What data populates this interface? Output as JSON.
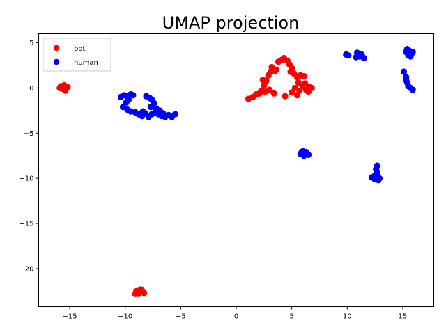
{
  "chart_data": {
    "type": "scatter",
    "title": "UMAP projection",
    "xlabel": "",
    "ylabel": "",
    "xlim": [
      -17.8,
      17.8
    ],
    "ylim": [
      -24.2,
      6.0
    ],
    "xticks": [
      -15,
      -10,
      -5,
      0,
      5,
      10,
      15
    ],
    "yticks": [
      5,
      0,
      -5,
      -10,
      -15,
      -20
    ],
    "grid": false,
    "legend_position": "top-left",
    "series": [
      {
        "name": "bot",
        "color": "#ff0000",
        "points": [
          [
            -15.8,
            0.2
          ],
          [
            -15.6,
            -0.1
          ],
          [
            -15.3,
            0.0
          ],
          [
            -15.9,
            0.0
          ],
          [
            -15.5,
            0.3
          ],
          [
            -15.4,
            -0.3
          ],
          [
            -15.7,
            0.1
          ],
          [
            -15.2,
            0.1
          ],
          [
            -9.0,
            -22.5
          ],
          [
            -8.8,
            -22.8
          ],
          [
            -8.5,
            -22.4
          ],
          [
            -8.3,
            -22.7
          ],
          [
            -8.7,
            -22.6
          ],
          [
            -9.1,
            -22.8
          ],
          [
            -8.6,
            -22.3
          ],
          [
            1.1,
            -1.2
          ],
          [
            1.5,
            -1.0
          ],
          [
            1.8,
            -0.7
          ],
          [
            2.1,
            -0.6
          ],
          [
            2.3,
            -0.3
          ],
          [
            2.6,
            -0.4
          ],
          [
            2.5,
            0.3
          ],
          [
            2.7,
            0.8
          ],
          [
            2.4,
            0.9
          ],
          [
            2.9,
            1.4
          ],
          [
            3.1,
            1.8
          ],
          [
            3.2,
            2.3
          ],
          [
            3.5,
            1.9
          ],
          [
            3.8,
            2.9
          ],
          [
            4.1,
            3.1
          ],
          [
            4.3,
            3.3
          ],
          [
            4.6,
            3.0
          ],
          [
            4.8,
            2.6
          ],
          [
            5.0,
            2.2
          ],
          [
            5.2,
            1.6
          ],
          [
            5.5,
            1.2
          ],
          [
            5.8,
            1.4
          ],
          [
            6.1,
            1.3
          ],
          [
            5.6,
            0.6
          ],
          [
            6.0,
            0.2
          ],
          [
            5.3,
            0.0
          ],
          [
            5.7,
            -0.3
          ],
          [
            6.3,
            -0.2
          ],
          [
            6.6,
            0.1
          ],
          [
            6.8,
            0.0
          ],
          [
            6.5,
            -0.4
          ],
          [
            5.5,
            -0.8
          ],
          [
            4.4,
            -0.9
          ],
          [
            5.0,
            -0.5
          ],
          [
            3.4,
            -0.6
          ],
          [
            3.0,
            -0.2
          ],
          [
            3.6,
            2.0
          ],
          [
            4.9,
            1.8
          ],
          [
            6.2,
            0.5
          ]
        ]
      },
      {
        "name": "human",
        "color": "#0000ff",
        "points": [
          [
            -10.4,
            -1.0
          ],
          [
            -10.1,
            -0.8
          ],
          [
            -9.8,
            -0.9
          ],
          [
            -9.5,
            -0.7
          ],
          [
            -9.3,
            -0.8
          ],
          [
            -9.7,
            -1.3
          ],
          [
            -9.9,
            -1.6
          ],
          [
            -10.2,
            -2.1
          ],
          [
            -9.8,
            -2.4
          ],
          [
            -9.5,
            -2.6
          ],
          [
            -9.1,
            -2.7
          ],
          [
            -8.8,
            -2.9
          ],
          [
            -8.5,
            -3.1
          ],
          [
            -8.2,
            -2.8
          ],
          [
            -8.4,
            -2.6
          ],
          [
            -7.9,
            -3.2
          ],
          [
            -7.6,
            -2.9
          ],
          [
            -7.3,
            -2.7
          ],
          [
            -7.0,
            -2.9
          ],
          [
            -6.7,
            -3.1
          ],
          [
            -6.4,
            -3.2
          ],
          [
            -6.1,
            -3.0
          ],
          [
            -5.8,
            -3.2
          ],
          [
            -5.5,
            -2.9
          ],
          [
            -8.1,
            -0.9
          ],
          [
            -7.8,
            -1.1
          ],
          [
            -7.6,
            -1.3
          ],
          [
            -7.4,
            -1.7
          ],
          [
            -7.7,
            -2.1
          ],
          [
            -7.2,
            -2.3
          ],
          [
            -6.9,
            -2.5
          ],
          [
            -6.6,
            -2.8
          ],
          [
            6.0,
            -7.0
          ],
          [
            6.3,
            -7.1
          ],
          [
            5.8,
            -7.3
          ],
          [
            6.5,
            -7.4
          ],
          [
            6.1,
            -7.5
          ],
          [
            5.9,
            -7.1
          ],
          [
            12.7,
            -8.6
          ],
          [
            12.6,
            -9.0
          ],
          [
            12.7,
            -9.4
          ],
          [
            12.5,
            -9.7
          ],
          [
            12.2,
            -9.9
          ],
          [
            12.5,
            -10.1
          ],
          [
            12.8,
            -10.2
          ],
          [
            12.9,
            -10.0
          ],
          [
            9.9,
            3.7
          ],
          [
            10.1,
            3.6
          ],
          [
            10.9,
            3.9
          ],
          [
            11.1,
            3.5
          ],
          [
            11.3,
            3.7
          ],
          [
            10.8,
            3.4
          ],
          [
            11.5,
            3.3
          ],
          [
            11.0,
            3.8
          ],
          [
            15.1,
            1.8
          ],
          [
            15.3,
            1.2
          ],
          [
            15.4,
            0.6
          ],
          [
            15.5,
            0.2
          ],
          [
            15.7,
            0.0
          ],
          [
            15.9,
            -0.2
          ],
          [
            15.3,
            0.9
          ],
          [
            15.4,
            4.3
          ],
          [
            15.6,
            4.1
          ],
          [
            15.8,
            3.8
          ],
          [
            15.9,
            4.0
          ],
          [
            15.5,
            3.6
          ],
          [
            15.3,
            4.0
          ],
          [
            15.7,
            3.5
          ]
        ]
      }
    ]
  }
}
